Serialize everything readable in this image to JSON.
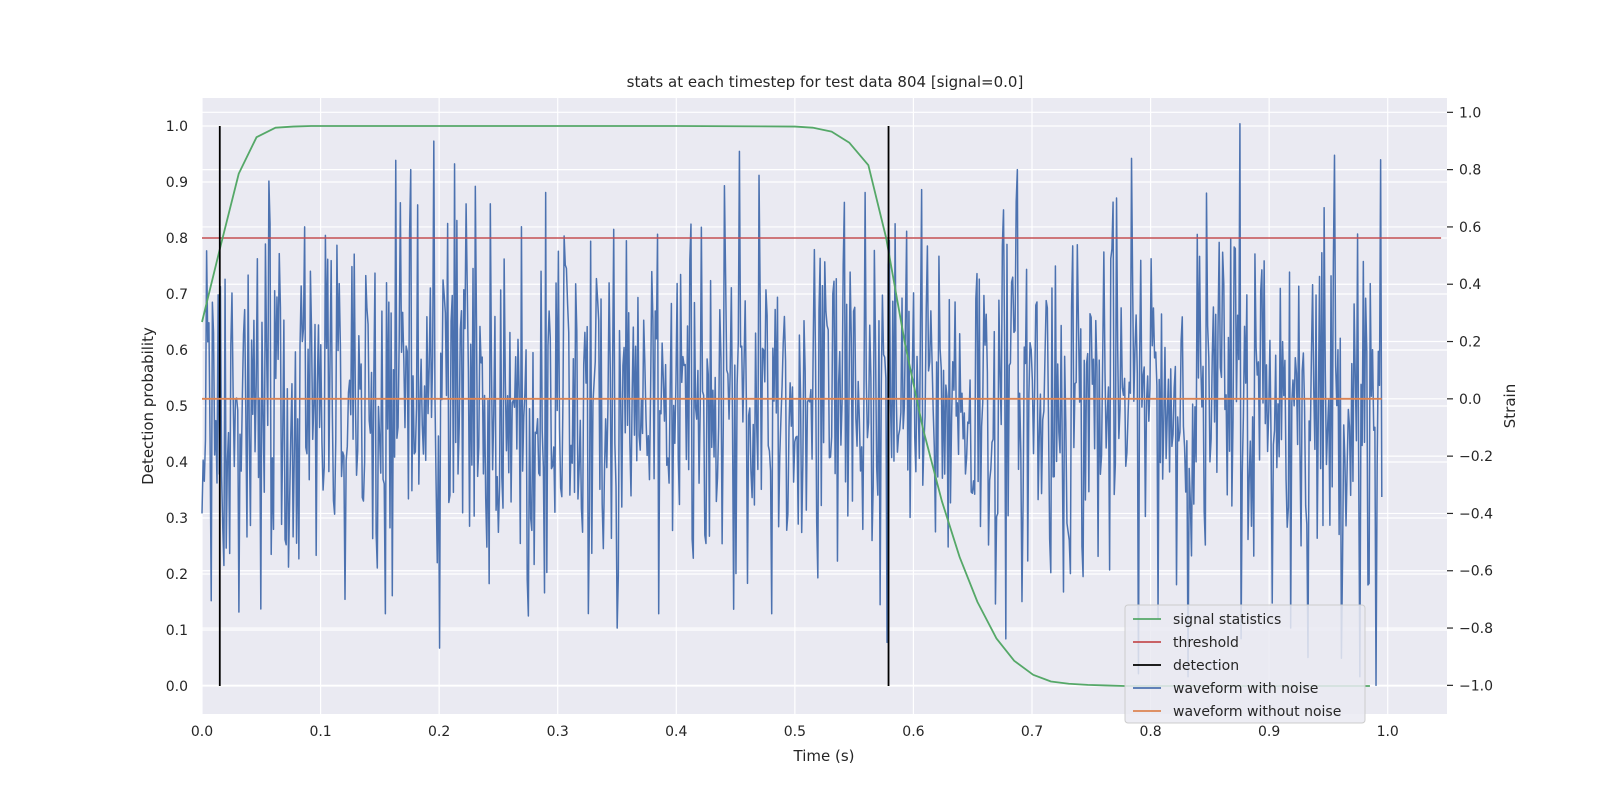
{
  "chart_data": {
    "type": "line",
    "title": "stats at each timestep for test data 804 [signal=0.0]",
    "xlabel": "Time (s)",
    "ylabel": "Detection probability",
    "y2label": "Strain",
    "xlim": [
      0.0,
      1.05
    ],
    "ylim": [
      -0.05,
      1.05
    ],
    "y2lim": [
      -1.1,
      1.05
    ],
    "xticks": [
      "0.0",
      "0.1",
      "0.2",
      "0.3",
      "0.4",
      "0.5",
      "0.6",
      "0.7",
      "0.8",
      "0.9",
      "1.0"
    ],
    "yticks": [
      "0.0",
      "0.1",
      "0.2",
      "0.3",
      "0.4",
      "0.5",
      "0.6",
      "0.7",
      "0.8",
      "0.9",
      "1.0"
    ],
    "y2ticks": [
      "−1.0",
      "−0.8",
      "−0.6",
      "−0.4",
      "−0.2",
      "0.0",
      "0.2",
      "0.4",
      "0.6",
      "0.8",
      "1.0"
    ],
    "grid": true,
    "legend_position": "bottom-right",
    "colors": {
      "signal": "#55a868",
      "threshold": "#c44e52",
      "detection": "#000000",
      "noisy": "#4c72b0",
      "clean": "#dd8452",
      "background": "#eaeaf2"
    },
    "series": [
      {
        "name": "signal statistics",
        "axis": "left",
        "x": [
          0.0,
          0.015,
          0.031,
          0.046,
          0.062,
          0.077,
          0.092,
          0.2,
          0.3,
          0.4,
          0.5,
          0.515,
          0.531,
          0.546,
          0.562,
          0.577,
          0.593,
          0.608,
          0.624,
          0.639,
          0.654,
          0.67,
          0.685,
          0.701,
          0.716,
          0.731,
          0.747,
          0.762,
          0.778,
          0.8,
          0.9,
          0.985
        ],
        "values": [
          0.65,
          0.78,
          0.915,
          0.98,
          0.997,
          0.999,
          1.0,
          1.0,
          1.0,
          1.0,
          0.999,
          0.997,
          0.99,
          0.97,
          0.93,
          0.8,
          0.61,
          0.46,
          0.33,
          0.23,
          0.15,
          0.085,
          0.045,
          0.02,
          0.008,
          0.004,
          0.002,
          0.001,
          0.0,
          0.0,
          0.0,
          0.0
        ]
      },
      {
        "name": "threshold",
        "axis": "left",
        "x": [
          0.0,
          1.045
        ],
        "values": [
          0.8,
          0.8
        ]
      },
      {
        "name": "detection",
        "axis": "left",
        "segments": [
          {
            "x": 0.015,
            "y0": 0.0,
            "y1": 1.0
          },
          {
            "x": 0.579,
            "y0": 0.0,
            "y1": 1.0
          }
        ]
      },
      {
        "name": "waveform with noise",
        "axis": "right",
        "n_samples": 1024,
        "x_range": [
          0.0,
          0.995
        ],
        "amplitude": 0.32,
        "notable_samples": [
          {
            "x": 0.0,
            "value": -0.4
          },
          {
            "x": 0.056,
            "value": 0.76
          },
          {
            "x": 0.087,
            "value": 0.6
          },
          {
            "x": 0.121,
            "value": -0.7
          },
          {
            "x": 0.155,
            "value": -0.75
          },
          {
            "x": 0.176,
            "value": 0.8
          },
          {
            "x": 0.2,
            "value": -0.87
          },
          {
            "x": 0.213,
            "value": 0.82
          },
          {
            "x": 0.29,
            "value": 0.72
          },
          {
            "x": 0.35,
            "value": -0.8
          },
          {
            "x": 0.385,
            "value": -0.75
          },
          {
            "x": 0.47,
            "value": 0.78
          },
          {
            "x": 0.48,
            "value": -0.75
          },
          {
            "x": 0.559,
            "value": 0.72
          },
          {
            "x": 0.578,
            "value": -0.85
          },
          {
            "x": 0.688,
            "value": 0.8
          },
          {
            "x": 0.875,
            "value": 0.96
          },
          {
            "x": 0.918,
            "value": -0.8
          },
          {
            "x": 0.955,
            "value": 0.85
          },
          {
            "x": 0.99,
            "value": -1.0
          }
        ]
      },
      {
        "name": "waveform without noise",
        "axis": "right",
        "x": [
          0.0,
          0.995
        ],
        "values": [
          0.0,
          0.0
        ]
      }
    ]
  }
}
